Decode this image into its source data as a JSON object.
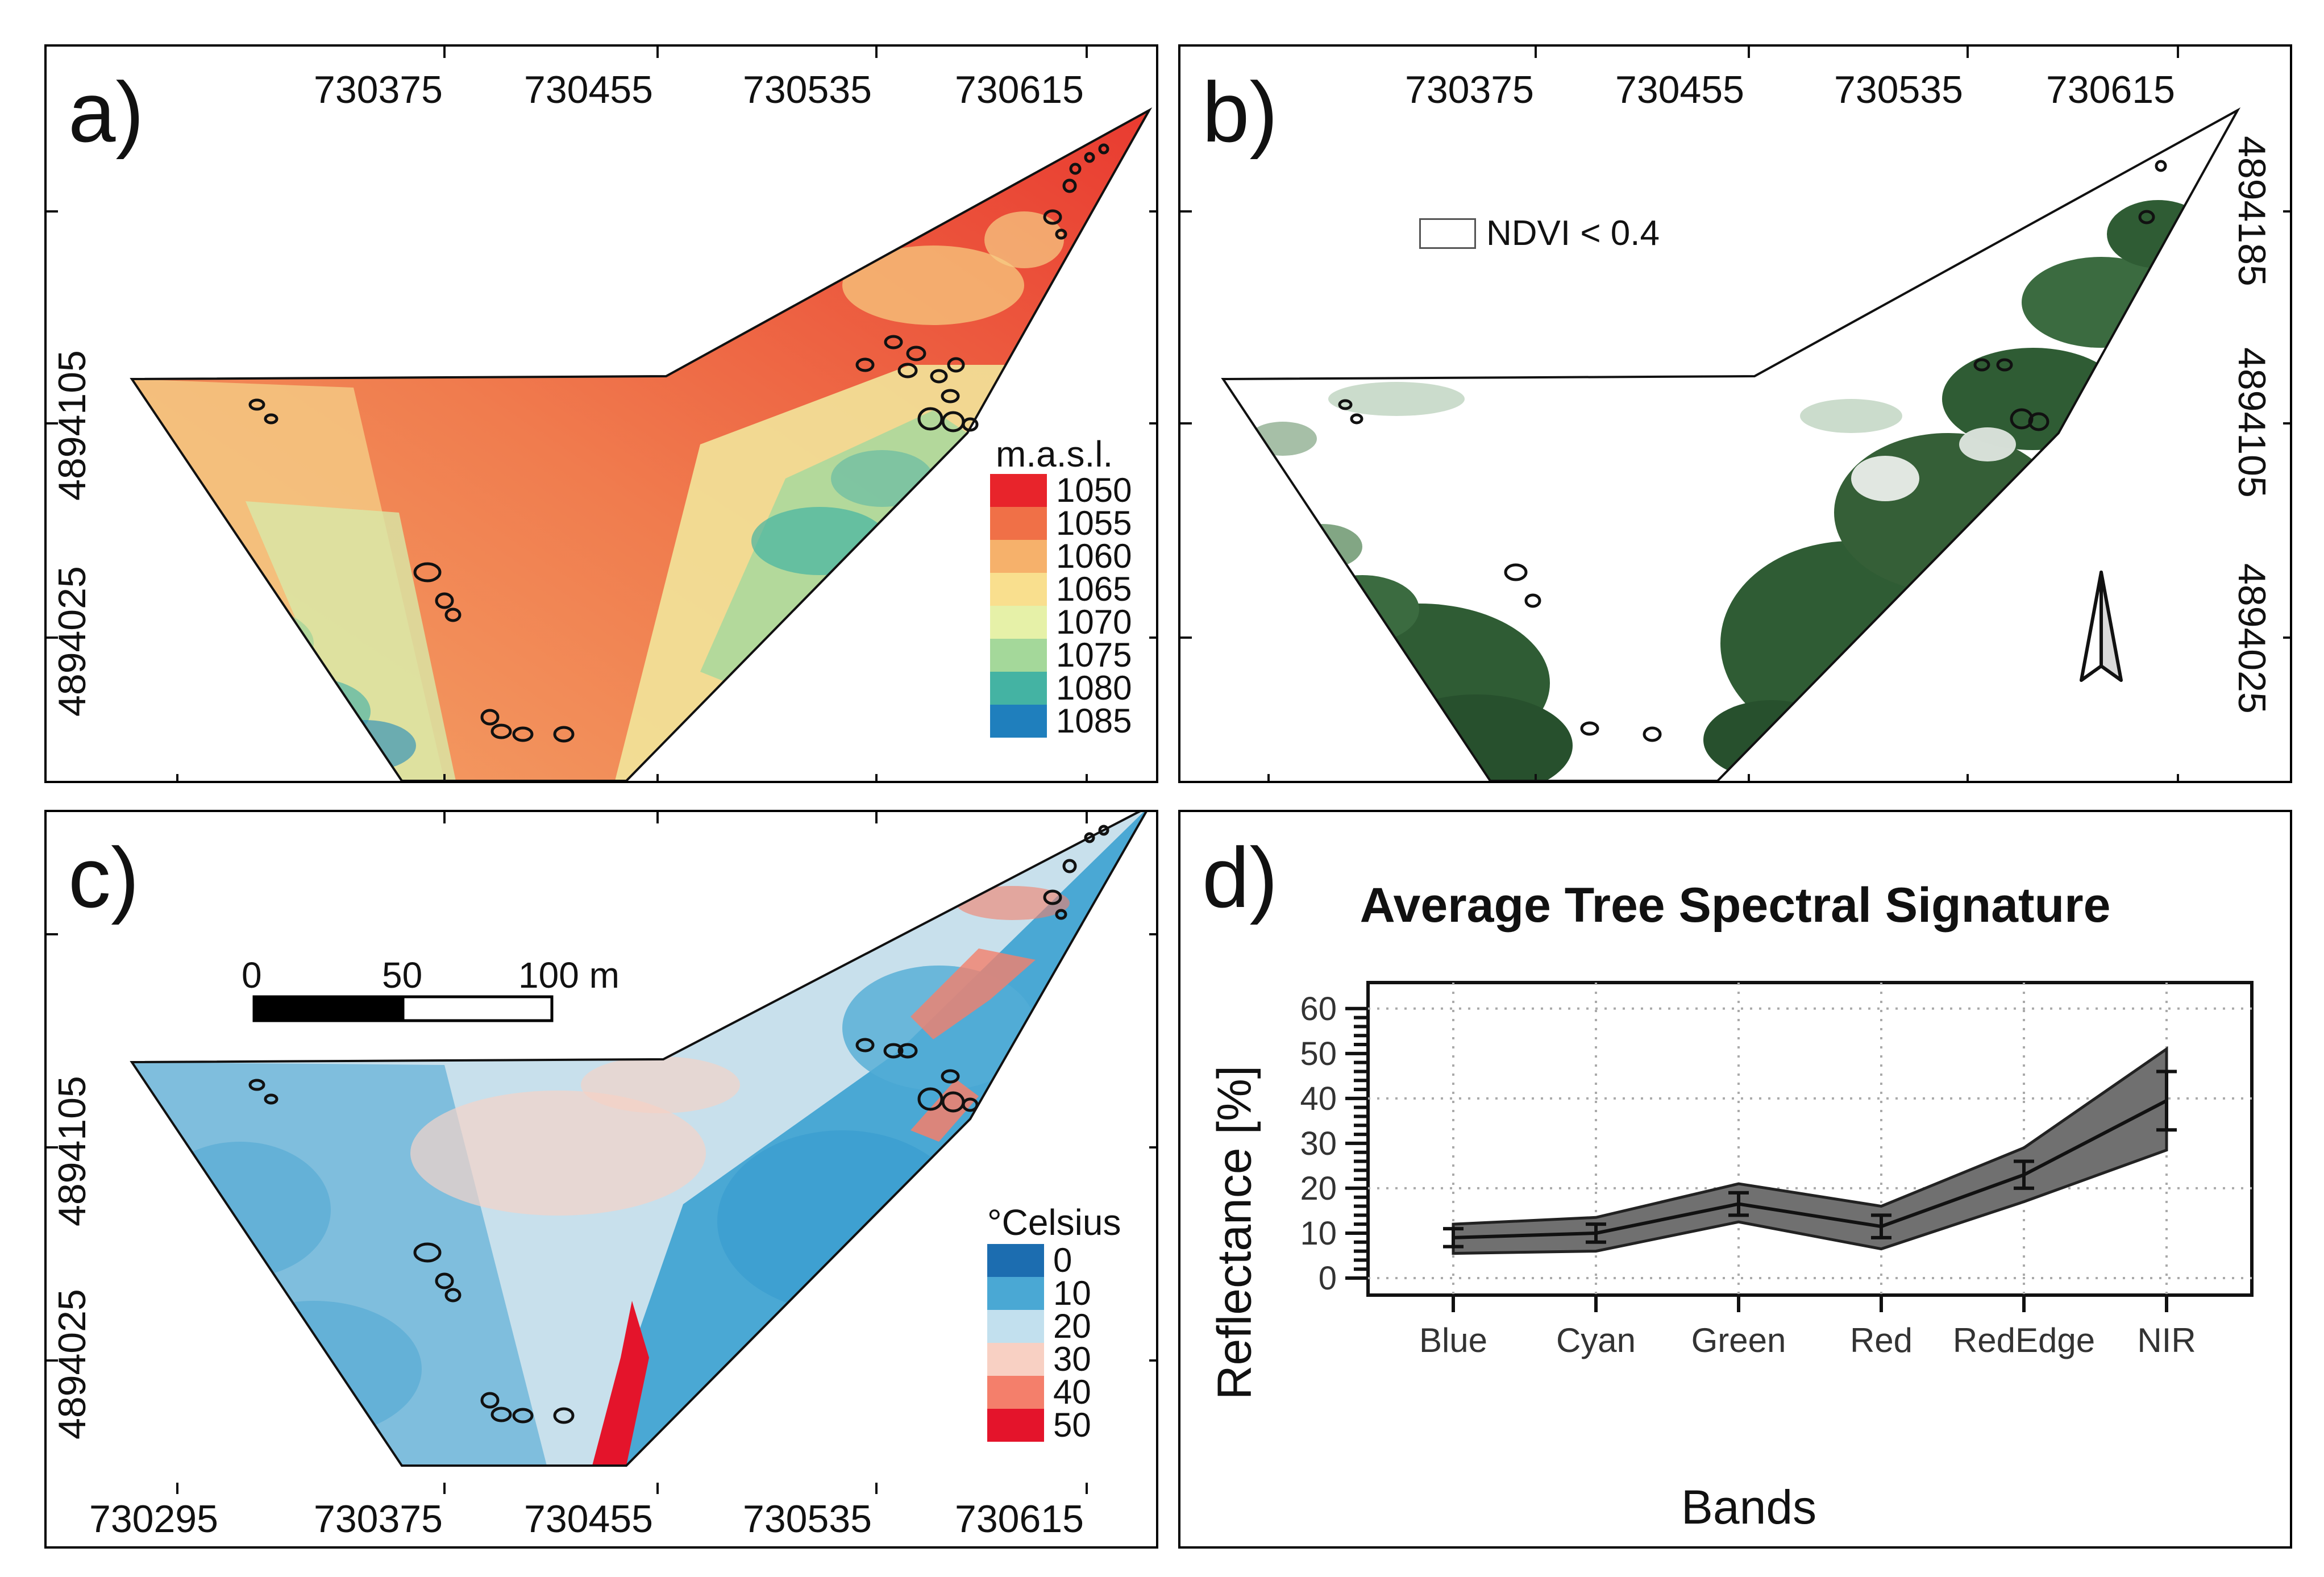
{
  "panels": {
    "a": {
      "letter": "a)",
      "x_ticks": [
        "730375",
        "730455",
        "730535",
        "730615"
      ],
      "y_ticks": [
        "4894105",
        "4894025"
      ],
      "legend": {
        "title": "m.a.s.l.",
        "items": [
          {
            "label": "1050",
            "color": "#e8242b"
          },
          {
            "label": "1055",
            "color": "#f07047"
          },
          {
            "label": "1060",
            "color": "#f6b16b"
          },
          {
            "label": "1065",
            "color": "#f9df8e"
          },
          {
            "label": "1070",
            "color": "#e6f1a8"
          },
          {
            "label": "1075",
            "color": "#a4d89a"
          },
          {
            "label": "1080",
            "color": "#44b3a3"
          },
          {
            "label": "1085",
            "color": "#1f7fbd"
          }
        ]
      }
    },
    "b": {
      "letter": "b)",
      "x_ticks": [
        "730375",
        "730455",
        "730535",
        "730615"
      ],
      "y_ticks": [
        "4894185",
        "4894105",
        "4894025"
      ],
      "legend_label": "NDVI < 0.4",
      "north_arrow_icon": "north-arrow-icon"
    },
    "c": {
      "letter": "c)",
      "x_ticks": [
        "730295",
        "730375",
        "730455",
        "730535",
        "730615"
      ],
      "y_ticks": [
        "4894105",
        "4894025"
      ],
      "scale_bar": {
        "labels": [
          "0",
          "50",
          "100 m"
        ]
      },
      "legend": {
        "title": "°Celsius",
        "items": [
          {
            "label": "0",
            "color": "#1c6db0"
          },
          {
            "label": "10",
            "color": "#4aa8d4"
          },
          {
            "label": "20",
            "color": "#c2e0ee"
          },
          {
            "label": "30",
            "color": "#f8d0c3"
          },
          {
            "label": "40",
            "color": "#f47f6b"
          },
          {
            "label": "50",
            "color": "#e4142b"
          }
        ]
      }
    },
    "d": {
      "letter": "d)"
    }
  },
  "colors": {
    "vegetation": "#2f5c34",
    "vegetation_light": "#4d8050",
    "band_fill": "#707070",
    "line": "#111111"
  },
  "chart_data": {
    "type": "line",
    "title": "Average Tree Spectral Signature",
    "xlabel": "Bands",
    "ylabel": "Reflectance [%]",
    "categories": [
      "Blue",
      "Cyan",
      "Green",
      "Red",
      "RedEdge",
      "NIR"
    ],
    "series": [
      {
        "values": [
          9,
          10,
          16.5,
          11.5,
          23,
          39.5
        ],
        "error": [
          2,
          2,
          2.5,
          2.5,
          3,
          6.5
        ],
        "band_upper": [
          12,
          13.5,
          21,
          16,
          29,
          51
        ],
        "band_lower": [
          5.5,
          6,
          12.5,
          6.5,
          17,
          28.5
        ]
      }
    ],
    "ylim": [
      0,
      62
    ],
    "yticks": [
      "0",
      "10",
      "20",
      "30",
      "40",
      "50",
      "60"
    ],
    "grid": true
  }
}
